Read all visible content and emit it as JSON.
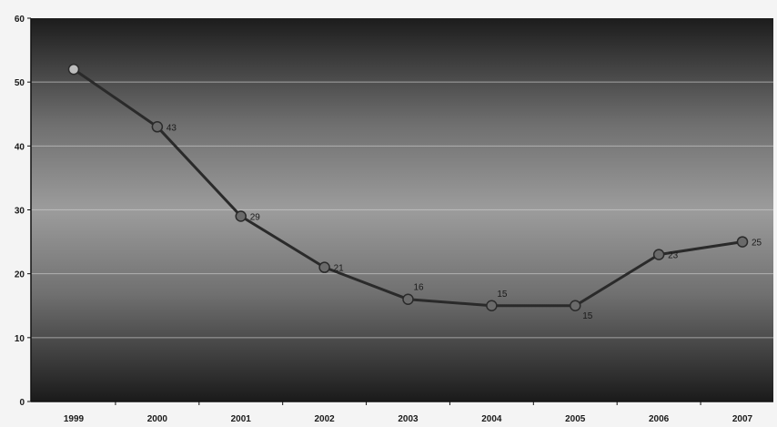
{
  "chart_data": {
    "type": "line",
    "title": "",
    "xlabel": "",
    "ylabel": "",
    "categories": [
      "1999",
      "2000",
      "2001",
      "2002",
      "2003",
      "2004",
      "2005",
      "2006",
      "2007"
    ],
    "series": [
      {
        "values": [
          52,
          43,
          29,
          21,
          16,
          15,
          15,
          23,
          25
        ],
        "data_labels": [
          "",
          "43",
          "29",
          "21",
          "16",
          "15",
          "15",
          "23",
          "25"
        ]
      }
    ],
    "ylim": [
      0,
      60
    ],
    "yticks": [
      0,
      10,
      20,
      30,
      40,
      50,
      60
    ],
    "grid": true,
    "legend": "none",
    "colors": {
      "line": "#2a2a2a",
      "marker": "#6a6a6a",
      "marker_first": "#bdbdbd",
      "plot_edge": "#151515",
      "plot_mid": "#9a9a9a",
      "grid": "#c8c8c8",
      "axis": "#111111"
    }
  }
}
